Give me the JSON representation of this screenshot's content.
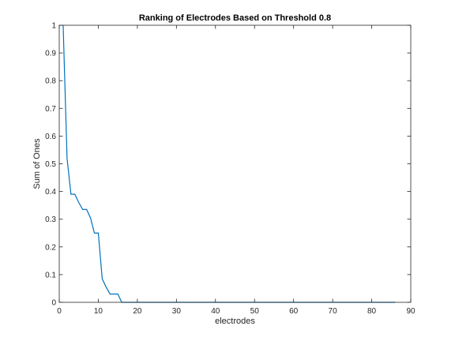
{
  "chart_data": {
    "type": "line",
    "title": "Ranking of Electrodes Based on Threshold 0.8",
    "xlabel": "electrodes",
    "ylabel": "Sum of Ones",
    "xlim": [
      0,
      90
    ],
    "ylim": [
      0,
      1
    ],
    "xticks": [
      "0",
      "10",
      "20",
      "30",
      "40",
      "50",
      "60",
      "70",
      "80",
      "90"
    ],
    "yticks": [
      "0",
      "0.1",
      "0.2",
      "0.3",
      "0.4",
      "0.5",
      "0.6",
      "0.7",
      "0.8",
      "0.9",
      "1"
    ],
    "grid": false,
    "series": [
      {
        "color": "#0072bd",
        "x": [
          1,
          2,
          3,
          4,
          5,
          6,
          7,
          8,
          9,
          10,
          11,
          12,
          13,
          14,
          15,
          16,
          17,
          86
        ],
        "y": [
          1,
          0.52,
          0.39,
          0.39,
          0.36,
          0.335,
          0.335,
          0.305,
          0.25,
          0.25,
          0.085,
          0.055,
          0.03,
          0.03,
          0.03,
          0,
          0,
          0
        ]
      }
    ]
  }
}
